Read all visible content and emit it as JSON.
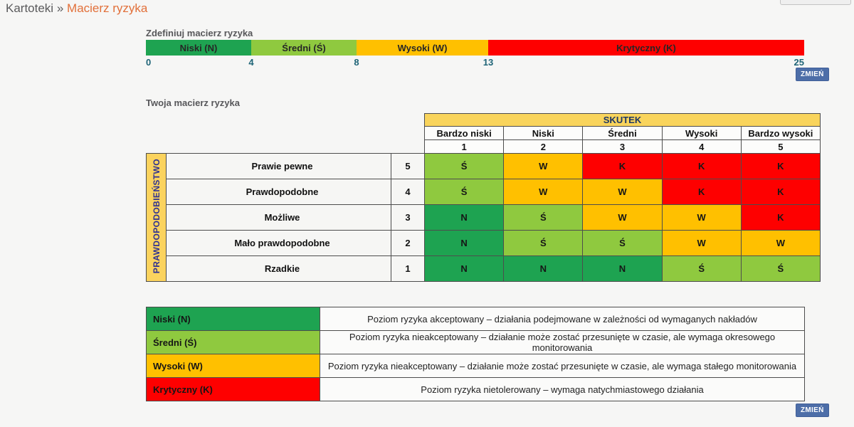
{
  "breadcrumb": {
    "parent": "Kartoteki",
    "separator": "»",
    "current": "Macierz ryzyka"
  },
  "define": {
    "title": "Zdefiniuj macierz ryzyka",
    "scale_max": 25,
    "segments": [
      {
        "label": "Niski (N)",
        "color": "#1ea351",
        "span": 4
      },
      {
        "label": "Średni (Ś)",
        "color": "#8fc93f",
        "span": 4
      },
      {
        "label": "Wysoki (W)",
        "color": "#ffc000",
        "span": 5
      },
      {
        "label": "Krytyczny (K)",
        "color": "#fe0000",
        "span": 12
      }
    ],
    "ticks": [
      0,
      4,
      8,
      13,
      25
    ],
    "change_button": "ZMIEŃ"
  },
  "matrix": {
    "title": "Twoja macierz ryzyka",
    "column_axis": "SKUTEK",
    "row_axis": "PRAWDOPODOBIEŃSTWO",
    "columns": [
      {
        "label": "Bardzo niski",
        "value": "1"
      },
      {
        "label": "Niski",
        "value": "2"
      },
      {
        "label": "Średni",
        "value": "3"
      },
      {
        "label": "Wysoki",
        "value": "4"
      },
      {
        "label": "Bardzo wysoki",
        "value": "5"
      }
    ],
    "rows": [
      {
        "label": "Prawie pewne",
        "value": "5",
        "cells": [
          "Ś",
          "W",
          "K",
          "K",
          "K"
        ]
      },
      {
        "label": "Prawdopodobne",
        "value": "4",
        "cells": [
          "Ś",
          "W",
          "W",
          "K",
          "K"
        ]
      },
      {
        "label": "Możliwe",
        "value": "3",
        "cells": [
          "N",
          "Ś",
          "W",
          "W",
          "K"
        ]
      },
      {
        "label": "Mało prawdopodobne",
        "value": "2",
        "cells": [
          "N",
          "Ś",
          "Ś",
          "W",
          "W"
        ]
      },
      {
        "label": "Rzadkie",
        "value": "1",
        "cells": [
          "N",
          "N",
          "N",
          "Ś",
          "Ś"
        ]
      }
    ],
    "level_colors": {
      "N": "#1ea351",
      "Ś": "#8fc93f",
      "W": "#ffc000",
      "K": "#fe0000"
    }
  },
  "legend": {
    "rows": [
      {
        "label": "Niski (N)",
        "color": "#1ea351",
        "description": "Poziom ryzyka akceptowany – działania podejmowane w zależności od wymaganych nakładów"
      },
      {
        "label": "Średni (Ś)",
        "color": "#8fc93f",
        "description": "Poziom ryzyka nieakceptowany – działanie może zostać przesunięte w czasie, ale wymaga okresowego monitorowania"
      },
      {
        "label": "Wysoki (W)",
        "color": "#ffc000",
        "description": "Poziom ryzyka nieakceptowany – działanie może zostać przesunięte w czasie, ale wymaga stałego monitorowania"
      },
      {
        "label": "Krytyczny (K)",
        "color": "#fe0000",
        "description": "Poziom ryzyka nietolerowany – wymaga natychmiastowego działania"
      }
    ],
    "change_button": "ZMIEŃ"
  },
  "theme": {
    "button_bg": "#4d6ea8",
    "header_bg": "#f9d45c",
    "axis_text": "#2e3192",
    "tick_text": "#1e6477",
    "breadcrumb_current": "#e2703a",
    "table_border": "#4d4d4d"
  }
}
